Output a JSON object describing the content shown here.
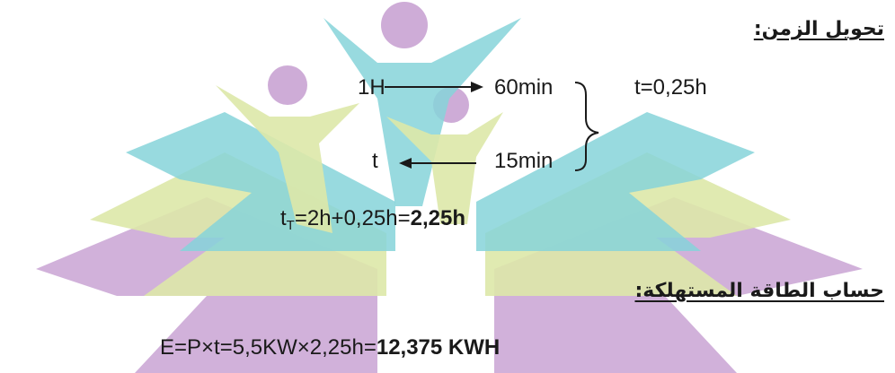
{
  "headings": {
    "time_conversion": "تحويل الزمن:",
    "energy_calculation": "حساب الطاقة المستهلكة:"
  },
  "conversion": {
    "left_top": "1H",
    "right_top": "60min",
    "left_bottom": "t",
    "right_bottom": "15min",
    "result": "t=0,25h"
  },
  "total_time": {
    "symbol": "t",
    "subscript": "T",
    "expression": "=2h+0,25h=",
    "result": "2,25h"
  },
  "energy": {
    "expression": "E=P×t=5,5KW×2,25h=",
    "result": "12,375 KWH"
  },
  "watermark": {
    "description_icon": "book-with-children-logo-icon",
    "colors": [
      "#7fd3db",
      "#d9e6a0",
      "#cfa8d6",
      "#c79ad0"
    ]
  }
}
